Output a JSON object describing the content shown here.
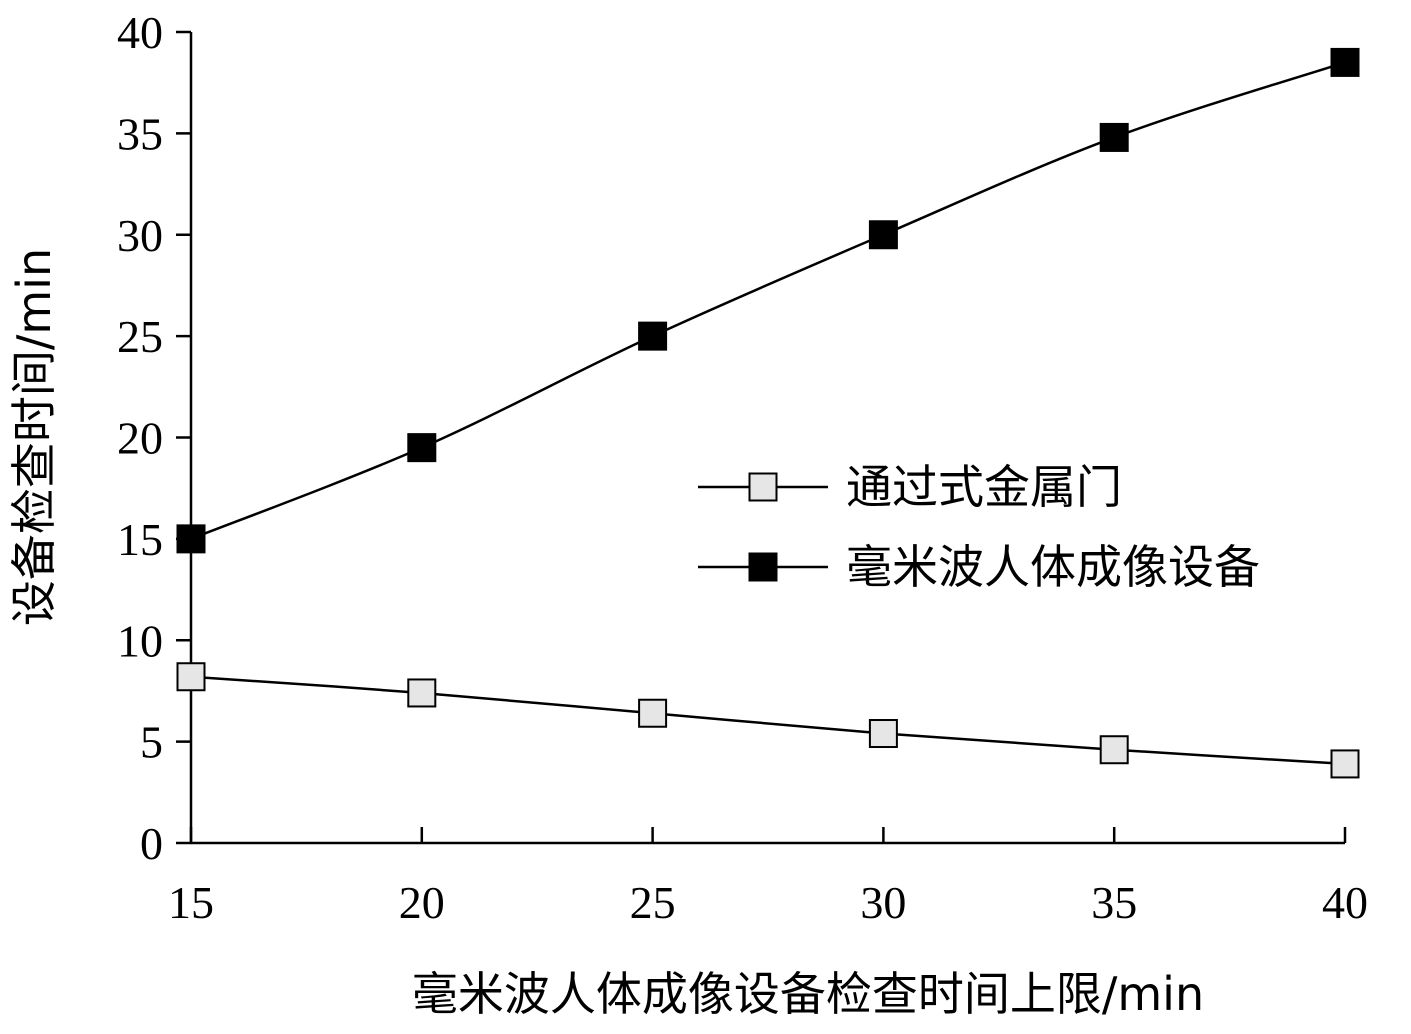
{
  "chart_data": {
    "type": "line",
    "xlabel": "毫米波人体成像设备检查时间上限/min",
    "ylabel": "设备检查时间/min",
    "xlim": [
      15,
      40
    ],
    "ylim": [
      0,
      40
    ],
    "x_ticks": [
      "15",
      "20",
      "25",
      "30",
      "35",
      "40"
    ],
    "y_ticks": [
      "0",
      "5",
      "10",
      "15",
      "20",
      "25",
      "30",
      "35",
      "40"
    ],
    "x": [
      15,
      20,
      25,
      30,
      35,
      40
    ],
    "grid": false,
    "legend_position": "right",
    "series": [
      {
        "name": "通过式金属门",
        "marker": "open-square",
        "color": "#000000",
        "fill": "#e6e6e6",
        "values": [
          8.2,
          7.4,
          6.4,
          5.4,
          4.6,
          3.9
        ]
      },
      {
        "name": "毫米波人体成像设备",
        "marker": "filled-square",
        "color": "#000000",
        "fill": "#000000",
        "values": [
          15.0,
          19.5,
          25.0,
          30.0,
          34.8,
          38.5
        ]
      }
    ]
  }
}
